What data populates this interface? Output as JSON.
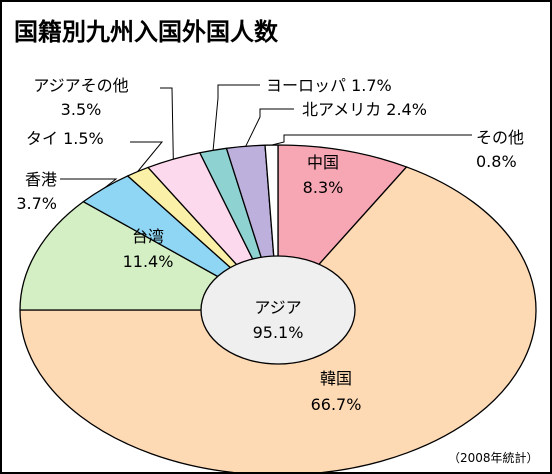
{
  "chart_data": {
    "type": "pie",
    "title": "国籍別九州入国外国人数",
    "note": "（2008年統計）",
    "inner": {
      "name": "アジア",
      "value_label": "95.1%",
      "value": 95.1,
      "color": "#efefef"
    },
    "slices": [
      {
        "name": "中国",
        "value": 8.3,
        "value_label": "8.3%",
        "color": "#f7a7b4"
      },
      {
        "name": "韓国",
        "value": 66.7,
        "value_label": "66.7%",
        "color": "#fdd9b4"
      },
      {
        "name": "台湾",
        "value": 11.4,
        "value_label": "11.4%",
        "color": "#d4efc4"
      },
      {
        "name": "香港",
        "value": 3.7,
        "value_label": "3.7%",
        "color": "#8fd6f4"
      },
      {
        "name": "タイ",
        "value": 1.5,
        "value_label": "1.5%",
        "color": "#fbf0a7"
      },
      {
        "name": "アジアその他",
        "value": 3.5,
        "value_label": "3.5%",
        "color": "#fcd9ec"
      },
      {
        "name": "ヨーロッパ",
        "value": 1.7,
        "value_label": "1.7%",
        "color": "#8fd2d2"
      },
      {
        "name": "北アメリカ",
        "value": 2.4,
        "value_label": "2.4%",
        "color": "#bdb0dc"
      },
      {
        "name": "その他",
        "value": 0.8,
        "value_label": "0.8%",
        "color": "#ffffff"
      }
    ]
  }
}
